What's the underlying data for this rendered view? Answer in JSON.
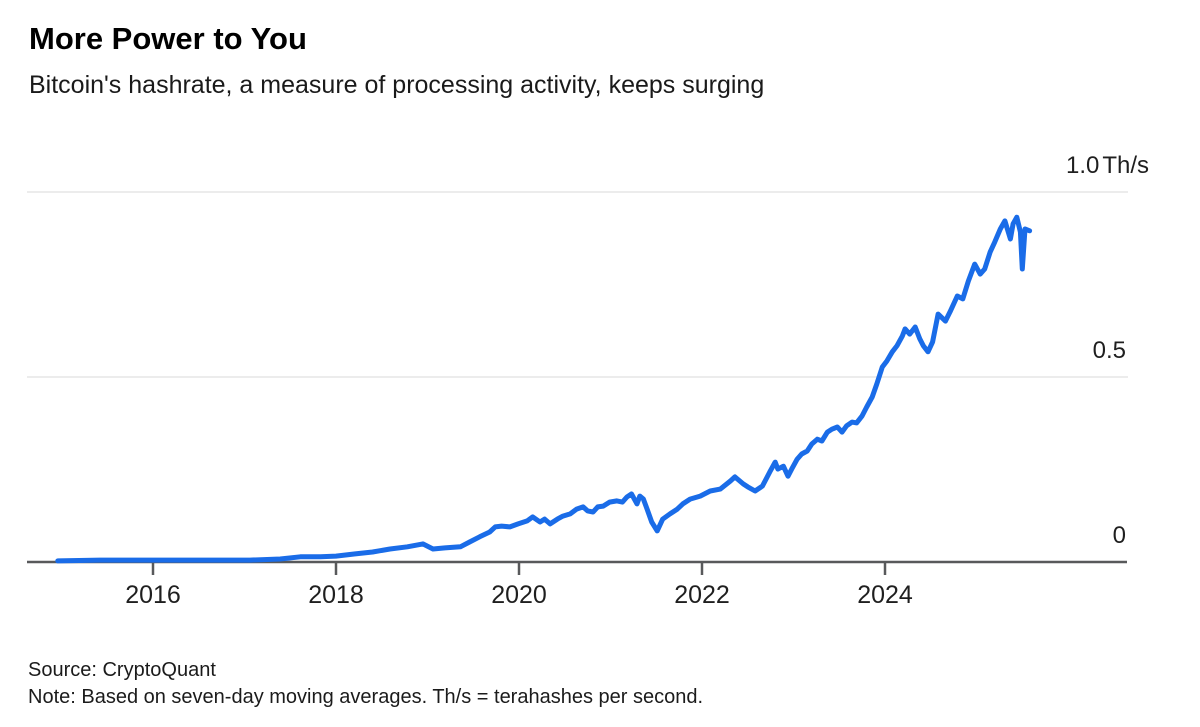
{
  "header": {
    "title": "More Power to You",
    "subtitle": "Bitcoin's hashrate, a measure of processing activity, keeps surging"
  },
  "footer": {
    "source": "Source: CryptoQuant",
    "note": "Note: Based on seven-day moving averages. Th/s = terahashes per second."
  },
  "chart_data": {
    "type": "line",
    "series_name": "Bitcoin hashrate (seven-day moving average)",
    "line_color": "#1a6ce8",
    "grid_color": "#ececec",
    "axis_color": "#58595b",
    "ylabel_unit": "Th/s",
    "ylim": [
      0,
      1.0
    ],
    "xlim": [
      2014.9,
      2025.75
    ],
    "yticks": [
      {
        "value": 0,
        "label": "0",
        "unit": ""
      },
      {
        "value": 0.5,
        "label": "0.5",
        "unit": ""
      },
      {
        "value": 1.0,
        "label": "1.0",
        "unit": "Th/s"
      }
    ],
    "xticks": [
      {
        "value": 2016,
        "label": "2016"
      },
      {
        "value": 2018,
        "label": "2018"
      },
      {
        "value": 2020,
        "label": "2020"
      },
      {
        "value": 2022,
        "label": "2022"
      },
      {
        "value": 2024,
        "label": "2024"
      }
    ],
    "points": [
      [
        2014.96,
        0.003
      ],
      [
        2015.42,
        0.005
      ],
      [
        2015.97,
        0.005
      ],
      [
        2016.51,
        0.005
      ],
      [
        2017.06,
        0.005
      ],
      [
        2017.39,
        0.008
      ],
      [
        2017.61,
        0.014
      ],
      [
        2017.83,
        0.014
      ],
      [
        2018.0,
        0.016
      ],
      [
        2018.21,
        0.022
      ],
      [
        2018.4,
        0.027
      ],
      [
        2018.59,
        0.035
      ],
      [
        2018.78,
        0.041
      ],
      [
        2018.95,
        0.049
      ],
      [
        2019.06,
        0.035
      ],
      [
        2019.19,
        0.038
      ],
      [
        2019.36,
        0.041
      ],
      [
        2019.46,
        0.054
      ],
      [
        2019.57,
        0.068
      ],
      [
        2019.68,
        0.081
      ],
      [
        2019.74,
        0.095
      ],
      [
        2019.81,
        0.097
      ],
      [
        2019.9,
        0.095
      ],
      [
        2019.99,
        0.103
      ],
      [
        2020.09,
        0.111
      ],
      [
        2020.15,
        0.122
      ],
      [
        2020.23,
        0.108
      ],
      [
        2020.28,
        0.116
      ],
      [
        2020.34,
        0.103
      ],
      [
        2020.42,
        0.116
      ],
      [
        2020.48,
        0.124
      ],
      [
        2020.56,
        0.13
      ],
      [
        2020.63,
        0.143
      ],
      [
        2020.7,
        0.149
      ],
      [
        2020.75,
        0.138
      ],
      [
        2020.81,
        0.135
      ],
      [
        2020.86,
        0.149
      ],
      [
        2020.92,
        0.151
      ],
      [
        2020.99,
        0.162
      ],
      [
        2021.07,
        0.165
      ],
      [
        2021.13,
        0.162
      ],
      [
        2021.18,
        0.176
      ],
      [
        2021.23,
        0.184
      ],
      [
        2021.29,
        0.157
      ],
      [
        2021.32,
        0.178
      ],
      [
        2021.36,
        0.17
      ],
      [
        2021.4,
        0.143
      ],
      [
        2021.45,
        0.108
      ],
      [
        2021.51,
        0.084
      ],
      [
        2021.57,
        0.116
      ],
      [
        2021.65,
        0.13
      ],
      [
        2021.73,
        0.143
      ],
      [
        2021.79,
        0.157
      ],
      [
        2021.87,
        0.17
      ],
      [
        2021.98,
        0.178
      ],
      [
        2022.09,
        0.192
      ],
      [
        2022.2,
        0.197
      ],
      [
        2022.31,
        0.219
      ],
      [
        2022.36,
        0.23
      ],
      [
        2022.45,
        0.211
      ],
      [
        2022.5,
        0.203
      ],
      [
        2022.58,
        0.192
      ],
      [
        2022.66,
        0.205
      ],
      [
        2022.74,
        0.243
      ],
      [
        2022.8,
        0.27
      ],
      [
        2022.83,
        0.251
      ],
      [
        2022.89,
        0.259
      ],
      [
        2022.94,
        0.232
      ],
      [
        2022.98,
        0.251
      ],
      [
        2023.04,
        0.278
      ],
      [
        2023.09,
        0.292
      ],
      [
        2023.15,
        0.3
      ],
      [
        2023.2,
        0.319
      ],
      [
        2023.26,
        0.332
      ],
      [
        2023.31,
        0.327
      ],
      [
        2023.37,
        0.351
      ],
      [
        2023.42,
        0.359
      ],
      [
        2023.48,
        0.365
      ],
      [
        2023.53,
        0.351
      ],
      [
        2023.58,
        0.368
      ],
      [
        2023.64,
        0.378
      ],
      [
        2023.69,
        0.376
      ],
      [
        2023.75,
        0.395
      ],
      [
        2023.8,
        0.419
      ],
      [
        2023.86,
        0.446
      ],
      [
        2023.91,
        0.481
      ],
      [
        2023.97,
        0.527
      ],
      [
        2024.02,
        0.543
      ],
      [
        2024.08,
        0.568
      ],
      [
        2024.13,
        0.584
      ],
      [
        2024.19,
        0.611
      ],
      [
        2024.22,
        0.63
      ],
      [
        2024.27,
        0.616
      ],
      [
        2024.33,
        0.635
      ],
      [
        2024.38,
        0.603
      ],
      [
        2024.42,
        0.584
      ],
      [
        2024.47,
        0.568
      ],
      [
        2024.52,
        0.595
      ],
      [
        2024.58,
        0.67
      ],
      [
        2024.66,
        0.651
      ],
      [
        2024.71,
        0.676
      ],
      [
        2024.79,
        0.719
      ],
      [
        2024.85,
        0.711
      ],
      [
        2024.91,
        0.759
      ],
      [
        2024.98,
        0.805
      ],
      [
        2025.04,
        0.778
      ],
      [
        2025.09,
        0.792
      ],
      [
        2025.15,
        0.838
      ],
      [
        2025.2,
        0.865
      ],
      [
        2025.26,
        0.9
      ],
      [
        2025.31,
        0.922
      ],
      [
        2025.37,
        0.873
      ],
      [
        2025.4,
        0.914
      ],
      [
        2025.44,
        0.932
      ],
      [
        2025.48,
        0.892
      ],
      [
        2025.5,
        0.792
      ],
      [
        2025.53,
        0.9
      ],
      [
        2025.58,
        0.895
      ]
    ]
  }
}
